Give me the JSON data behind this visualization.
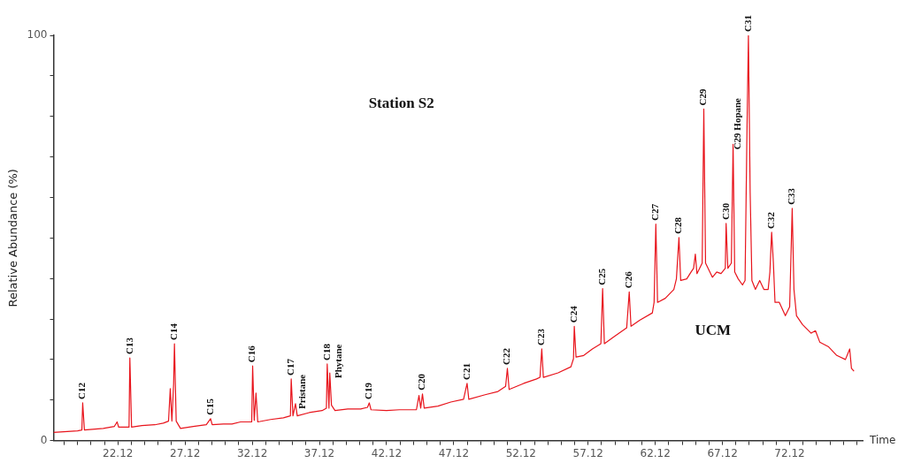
{
  "chart_data": {
    "type": "line",
    "title": "Station S2",
    "xlabel": "Time",
    "ylabel": "Relative Abundance (%)",
    "xlim": [
      17.33,
      77.55
    ],
    "xticks": [
      {
        "value": 18.12,
        "label": null
      },
      {
        "value": 19.12,
        "label": null
      },
      {
        "value": 20.12,
        "label": null
      },
      {
        "value": 21.12,
        "label": null
      },
      22.12,
      {
        "value": 23.12,
        "label": null
      },
      {
        "value": 24.12,
        "label": null
      },
      {
        "value": 25.12,
        "label": null
      },
      {
        "value": 26.12,
        "label": null
      },
      27.12,
      {
        "value": 28.12,
        "label": null
      },
      {
        "value": 29.12,
        "label": null
      },
      {
        "value": 30.12,
        "label": null
      },
      {
        "value": 31.12,
        "label": null
      },
      32.12,
      {
        "value": 33.12,
        "label": null
      },
      {
        "value": 34.12,
        "label": null
      },
      {
        "value": 35.12,
        "label": null
      },
      {
        "value": 36.12,
        "label": null
      },
      37.12,
      {
        "value": 38.12,
        "label": null
      },
      {
        "value": 39.12,
        "label": null
      },
      {
        "value": 40.12,
        "label": null
      },
      {
        "value": 41.12,
        "label": null
      },
      42.12,
      {
        "value": 43.12,
        "label": null
      },
      {
        "value": 44.12,
        "label": null
      },
      {
        "value": 45.12,
        "label": null
      },
      {
        "value": 46.12,
        "label": null
      },
      47.12,
      {
        "value": 48.12,
        "label": null
      },
      {
        "value": 49.12,
        "label": null
      },
      {
        "value": 50.12,
        "label": null
      },
      {
        "value": 51.12,
        "label": null
      },
      52.12,
      {
        "value": 53.12,
        "label": null
      },
      {
        "value": 54.12,
        "label": null
      },
      {
        "value": 55.12,
        "label": null
      },
      {
        "value": 56.12,
        "label": null
      },
      57.12,
      {
        "value": 58.12,
        "label": null
      },
      {
        "value": 59.12,
        "label": null
      },
      {
        "value": 60.12,
        "label": null
      },
      {
        "value": 61.12,
        "label": null
      },
      62.12,
      {
        "value": 63.12,
        "label": null
      },
      {
        "value": 64.12,
        "label": null
      },
      {
        "value": 65.12,
        "label": null
      },
      {
        "value": 66.12,
        "label": null
      },
      67.12,
      {
        "value": 68.12,
        "label": null
      },
      {
        "value": 69.12,
        "label": null
      },
      {
        "value": 70.12,
        "label": null
      },
      {
        "value": 71.12,
        "label": null
      },
      72.12,
      {
        "value": 73.12,
        "label": null
      },
      {
        "value": 74.12,
        "label": null
      },
      {
        "value": 75.12,
        "label": null
      },
      {
        "value": 76.12,
        "label": null
      },
      {
        "value": 77.12,
        "label": null
      }
    ],
    "ylim": [
      0,
      100
    ],
    "yticks": [
      0,
      {
        "value": 10,
        "label": null
      },
      {
        "value": 20,
        "label": null
      },
      {
        "value": 30,
        "label": null
      },
      {
        "value": 40,
        "label": null
      },
      {
        "value": 50,
        "label": null
      },
      {
        "value": 60,
        "label": null
      },
      {
        "value": 70,
        "label": null
      },
      {
        "value": 80,
        "label": null
      },
      {
        "value": 90,
        "label": null
      },
      100
    ],
    "grid": false,
    "legend": false,
    "marker": "none",
    "line_style": "solid",
    "series": [
      {
        "color": "#e8141c",
        "x": [
          17.33,
          19.12,
          19.44,
          19.5,
          19.63,
          21.03,
          21.86,
          22.06,
          22.18,
          22.95,
          23.01,
          23.14,
          23.91,
          24.87,
          25.5,
          25.89,
          26.02,
          26.14,
          26.27,
          26.33,
          26.46,
          26.78,
          27.74,
          28.7,
          29.02,
          29.14,
          29.97,
          30.61,
          31.25,
          32.08,
          32.15,
          32.27,
          32.4,
          32.53,
          33.49,
          34.44,
          34.96,
          35.02,
          35.15,
          35.34,
          35.47,
          36.36,
          37.32,
          37.64,
          37.7,
          37.83,
          37.89,
          38.02,
          38.28,
          39.23,
          40.19,
          40.7,
          40.83,
          40.96,
          42.11,
          43.07,
          44.34,
          44.53,
          44.66,
          44.79,
          44.92,
          45.94,
          46.9,
          47.85,
          48.11,
          48.24,
          49.45,
          50.41,
          50.98,
          51.11,
          51.24,
          52.32,
          53.28,
          53.54,
          53.67,
          53.79,
          54.88,
          55.84,
          56.03,
          56.09,
          56.22,
          56.79,
          57.43,
          58.07,
          58.2,
          58.33,
          59.03,
          59.99,
          60.18,
          60.31,
          60.95,
          61.9,
          62.03,
          62.16,
          62.29,
          62.86,
          63.5,
          63.69,
          63.88,
          64.01,
          64.46,
          64.78,
          64.97,
          65.1,
          65.22,
          65.61,
          65.73,
          65.86,
          66.37,
          66.69,
          67.01,
          67.33,
          67.39,
          67.52,
          67.78,
          67.91,
          68.03,
          68.29,
          68.61,
          68.8,
          68.93,
          69.05,
          69.18,
          69.31,
          69.57,
          69.89,
          70.2,
          70.52,
          70.65,
          70.78,
          70.91,
          71.03,
          71.35,
          71.8,
          72.12,
          72.31,
          72.44,
          72.63,
          73.08,
          73.72,
          74.04,
          74.36,
          74.99,
          75.63,
          76.27,
          76.59,
          76.72,
          76.91
        ],
        "values": [
          2.0,
          2.4,
          2.6,
          9.3,
          2.6,
          3.0,
          3.5,
          4.6,
          3.3,
          3.3,
          20.4,
          3.3,
          3.7,
          3.9,
          4.3,
          4.8,
          12.8,
          4.8,
          14.1,
          23.9,
          4.8,
          3.0,
          3.5,
          3.9,
          5.4,
          3.9,
          4.1,
          4.1,
          4.6,
          4.6,
          18.4,
          5.0,
          11.7,
          4.6,
          5.2,
          5.6,
          6.1,
          15.2,
          6.1,
          9.1,
          6.1,
          6.9,
          7.4,
          8.0,
          18.9,
          8.0,
          16.7,
          8.7,
          7.4,
          7.8,
          7.8,
          8.2,
          9.3,
          7.6,
          7.4,
          7.6,
          7.6,
          11.1,
          8.0,
          11.5,
          8.0,
          8.5,
          9.5,
          10.2,
          14.1,
          10.2,
          11.3,
          12.1,
          13.4,
          17.8,
          12.6,
          14.1,
          15.2,
          15.6,
          22.6,
          15.6,
          16.7,
          18.2,
          20.2,
          28.2,
          20.6,
          21.0,
          22.6,
          23.9,
          37.5,
          23.9,
          25.6,
          27.8,
          36.7,
          28.2,
          29.7,
          31.5,
          34.1,
          53.4,
          34.1,
          35.1,
          37.3,
          39.9,
          50.1,
          39.5,
          39.9,
          41.6,
          42.5,
          46.0,
          41.2,
          43.8,
          81.8,
          43.8,
          40.3,
          41.6,
          41.2,
          42.5,
          53.6,
          42.5,
          43.8,
          73.1,
          41.6,
          39.9,
          38.4,
          39.5,
          73.1,
          100,
          61.2,
          39.5,
          37.3,
          39.5,
          37.3,
          37.3,
          41.6,
          51.4,
          43.8,
          34.1,
          34.1,
          30.8,
          33.0,
          57.3,
          37.3,
          30.8,
          28.6,
          26.5,
          27.1,
          24.3,
          23.2,
          21.0,
          20.0,
          22.6,
          17.8,
          17.1
        ]
      }
    ],
    "annotations": [
      {
        "text": "C12",
        "x": 19.5,
        "y": 9.3
      },
      {
        "text": "C13",
        "x": 23.01,
        "y": 20.4
      },
      {
        "text": "C14",
        "x": 26.33,
        "y": 23.9
      },
      {
        "text": "C15",
        "x": 29.02,
        "y": 5.4
      },
      {
        "text": "C16",
        "x": 32.15,
        "y": 18.4
      },
      {
        "text": "C17",
        "x": 35.02,
        "y": 15.2
      },
      {
        "text": "Pristane",
        "x": 35.34,
        "y": 9.1
      },
      {
        "text": "C18",
        "x": 37.7,
        "y": 18.9
      },
      {
        "text": "Phytane",
        "x": 37.89,
        "y": 16.7
      },
      {
        "text": "C19",
        "x": 40.83,
        "y": 9.3
      },
      {
        "text": "C20",
        "x": 44.79,
        "y": 11.5
      },
      {
        "text": "C21",
        "x": 48.11,
        "y": 14.1
      },
      {
        "text": "C22",
        "x": 51.11,
        "y": 17.8
      },
      {
        "text": "C23",
        "x": 53.67,
        "y": 22.6
      },
      {
        "text": "C24",
        "x": 56.09,
        "y": 28.2
      },
      {
        "text": "C25",
        "x": 58.2,
        "y": 37.5
      },
      {
        "text": "C26",
        "x": 60.18,
        "y": 36.7
      },
      {
        "text": "C27",
        "x": 62.16,
        "y": 53.4
      },
      {
        "text": "C28",
        "x": 63.88,
        "y": 50.1
      },
      {
        "text": "C29",
        "x": 65.73,
        "y": 81.8
      },
      {
        "text": "C30",
        "x": 67.39,
        "y": 53.6
      },
      {
        "text": "C29 Hopane",
        "x": 67.91,
        "y": 73.1
      },
      {
        "text": "C31",
        "x": 69.05,
        "y": 100
      },
      {
        "text": "C32",
        "x": 70.78,
        "y": 51.4
      },
      {
        "text": "C33",
        "x": 72.31,
        "y": 57.3
      },
      "UCM"
    ]
  }
}
